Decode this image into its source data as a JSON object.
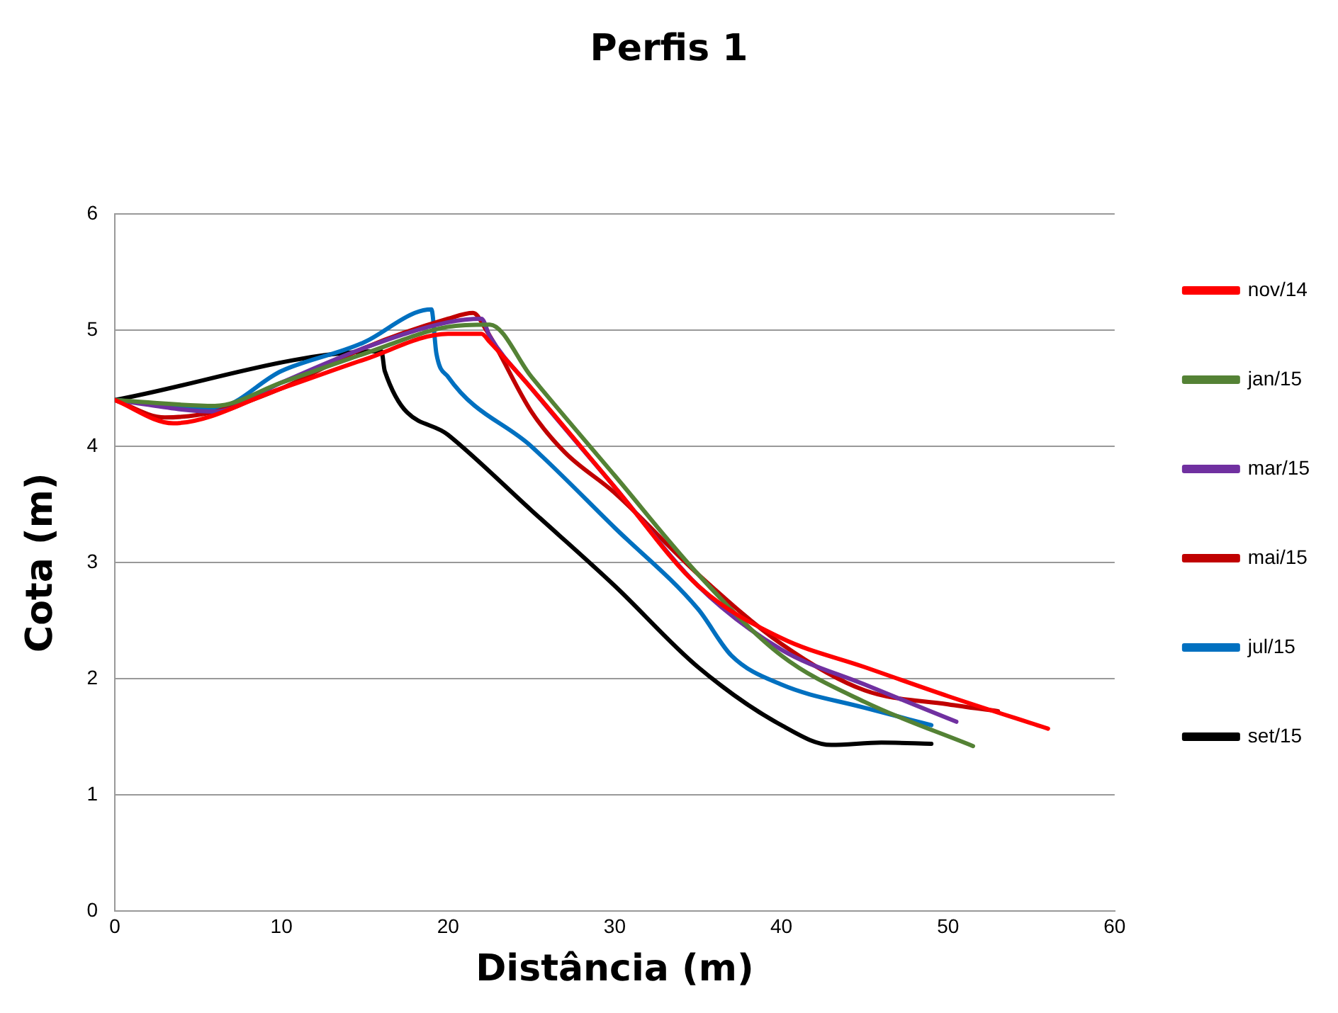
{
  "chart_data": {
    "type": "line",
    "title": "Perfis 1",
    "xlabel": "Distância (m)",
    "ylabel": "Cota (m)",
    "xlim": [
      0,
      60
    ],
    "xticks": [
      0,
      10,
      20,
      30,
      40,
      50,
      60
    ],
    "ylim": [
      0,
      6
    ],
    "yticks": [
      0,
      1,
      2,
      3,
      4,
      5,
      6
    ],
    "grid": "y",
    "legend": "right",
    "marker": "none",
    "line_style": "solid",
    "series": [
      {
        "name": "nov/14",
        "color": "#ff0000",
        "x": [
          0,
          3.5,
          10,
          15,
          20,
          22,
          22.5,
          25,
          30,
          35,
          40,
          45,
          50,
          56
        ],
        "values": [
          4.4,
          4.2,
          4.5,
          4.75,
          4.97,
          4.97,
          4.9,
          4.5,
          3.65,
          2.8,
          2.35,
          2.1,
          1.85,
          1.57
        ]
      },
      {
        "name": "jan/15",
        "color": "#548235",
        "x": [
          0,
          6,
          10,
          15,
          20,
          22.5,
          25,
          30,
          35,
          40,
          45,
          51.5
        ],
        "values": [
          4.4,
          4.35,
          4.55,
          4.8,
          5.03,
          5.05,
          4.6,
          3.75,
          2.9,
          2.2,
          1.8,
          1.42
        ]
      },
      {
        "name": "mar/15",
        "color": "#7030a0",
        "x": [
          0,
          6,
          10,
          15,
          20,
          22,
          22.5,
          25,
          30,
          35,
          40,
          45,
          50.5
        ],
        "values": [
          4.4,
          4.3,
          4.55,
          4.85,
          5.07,
          5.1,
          4.95,
          4.5,
          3.65,
          2.8,
          2.25,
          1.95,
          1.63
        ]
      },
      {
        "name": "mai/15",
        "color": "#c00000",
        "x": [
          0,
          3,
          6,
          10,
          15,
          20,
          21.5,
          22.3,
          25,
          27,
          30,
          35,
          40,
          45,
          50,
          53
        ],
        "values": [
          4.4,
          4.25,
          4.3,
          4.5,
          4.85,
          5.1,
          5.15,
          5,
          4.3,
          3.95,
          3.6,
          2.9,
          2.3,
          1.9,
          1.78,
          1.72
        ]
      },
      {
        "name": "jul/15",
        "color": "#0070c0",
        "x": [
          0,
          6,
          10,
          15,
          18,
          19,
          19.3,
          20,
          25,
          30,
          35,
          37,
          40,
          45,
          49
        ],
        "values": [
          4.4,
          4.33,
          4.65,
          4.9,
          5.15,
          5.18,
          4.8,
          4.6,
          4,
          3.3,
          2.6,
          2.2,
          1.95,
          1.75,
          1.6
        ]
      },
      {
        "name": "set/15",
        "color": "#000000",
        "x": [
          0,
          16,
          16.2,
          20,
          25,
          30,
          35,
          40,
          43,
          46,
          49
        ],
        "values": [
          4.4,
          4.82,
          4.65,
          4.1,
          3.45,
          2.8,
          2.1,
          1.6,
          1.43,
          1.45,
          1.44
        ]
      }
    ]
  }
}
